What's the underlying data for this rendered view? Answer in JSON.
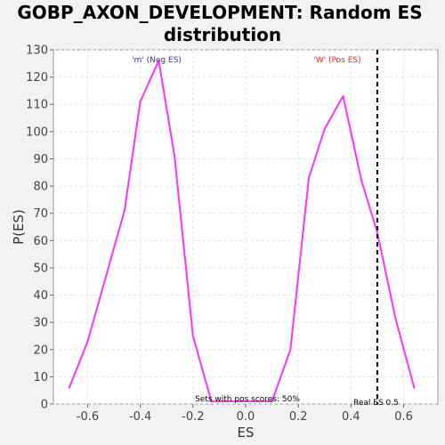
{
  "chart_data": {
    "type": "line",
    "title_lines": [
      "GOBP_AXON_DEVELOPMENT: Random ES",
      "distribution"
    ],
    "xlabel": "ES",
    "ylabel": "P(ES)",
    "xlim": [
      -0.73,
      0.73
    ],
    "ylim": [
      0,
      130
    ],
    "xticks": [
      -0.6,
      -0.4,
      -0.2,
      0.0,
      0.2,
      0.4,
      0.6
    ],
    "xtick_labels": [
      "-0.6",
      "-0.4",
      "-0.2",
      "0.0",
      "0.2",
      "0.4",
      "0.6"
    ],
    "yticks": [
      0,
      10,
      20,
      30,
      40,
      50,
      60,
      70,
      80,
      90,
      100,
      110,
      120,
      130
    ],
    "grid": true,
    "series": [
      {
        "color": "#ff33ff",
        "x": [
          -0.67,
          -0.6,
          -0.53,
          -0.46,
          -0.4,
          -0.33,
          -0.27,
          -0.2,
          -0.13,
          0.1,
          0.17,
          0.24,
          0.3,
          0.37,
          0.44,
          0.5,
          0.57,
          0.64
        ],
        "y": [
          6,
          23,
          47,
          71,
          111,
          126,
          91,
          25,
          1,
          1,
          20,
          83,
          101,
          113,
          82,
          63,
          31,
          6
        ]
      }
    ],
    "real_es_line": {
      "x": 0.5,
      "color": "#000000",
      "style": "dashed"
    },
    "annotations": {
      "neg_label": {
        "text": "'m' (Neg ES)",
        "color": "#3333cc"
      },
      "pos_label": {
        "text": "'W' (Pos ES)",
        "color": "#ee2222"
      },
      "pos_scores": {
        "text": "Sets with pos scores: 50%",
        "color": "#000000"
      },
      "real_es": {
        "text": "Real ES 0.5",
        "color": "#000000"
      }
    }
  }
}
